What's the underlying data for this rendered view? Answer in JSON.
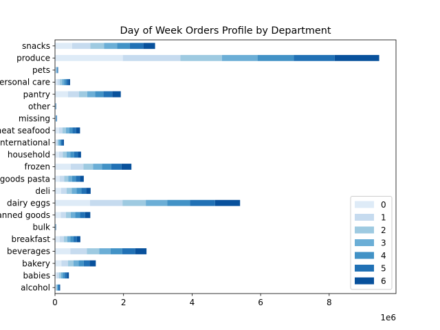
{
  "chart_data": {
    "type": "bar",
    "orientation": "horizontal",
    "stacked": true,
    "title": "Day of Week Orders Profile by Department",
    "xlabel": "",
    "ylabel": "",
    "x_scale_label": "1e6",
    "xlim": [
      0,
      9950000
    ],
    "x_ticks": [
      0,
      2000000,
      4000000,
      6000000,
      8000000
    ],
    "x_tick_labels": [
      "0",
      "2",
      "4",
      "6",
      "8"
    ],
    "grid": false,
    "legend_position": "lower right",
    "categories": [
      "alcohol",
      "babies",
      "bakery",
      "beverages",
      "breakfast",
      "bulk",
      "canned goods",
      "dairy eggs",
      "deli",
      "dry goods pasta",
      "frozen",
      "household",
      "international",
      "meat seafood",
      "missing",
      "other",
      "pantry",
      "personal care",
      "pets",
      "produce",
      "snacks"
    ],
    "series": [
      {
        "name": "0",
        "color": "#deebf7",
        "values": [
          20000,
          60000,
          190000,
          450000,
          140000,
          6000,
          170000,
          1020000,
          180000,
          140000,
          460000,
          120000,
          40000,
          120000,
          10000,
          6000,
          380000,
          70000,
          15000,
          1980000,
          500000
        ]
      },
      {
        "name": "1",
        "color": "#c6dbef",
        "values": [
          20000,
          60000,
          190000,
          480000,
          120000,
          5000,
          150000,
          950000,
          160000,
          130000,
          370000,
          110000,
          35000,
          100000,
          10000,
          6000,
          320000,
          70000,
          15000,
          1680000,
          530000
        ]
      },
      {
        "name": "2",
        "color": "#9ecae1",
        "values": [
          20000,
          55000,
          160000,
          360000,
          100000,
          4000,
          140000,
          680000,
          150000,
          120000,
          280000,
          110000,
          35000,
          100000,
          8000,
          5000,
          240000,
          65000,
          12000,
          1210000,
          400000
        ]
      },
      {
        "name": "3",
        "color": "#6baed6",
        "values": [
          20000,
          55000,
          150000,
          330000,
          90000,
          4000,
          130000,
          630000,
          140000,
          110000,
          260000,
          110000,
          35000,
          95000,
          8000,
          5000,
          230000,
          60000,
          12000,
          1040000,
          380000
        ]
      },
      {
        "name": "4",
        "color": "#4292c6",
        "values": [
          20000,
          55000,
          150000,
          340000,
          90000,
          4000,
          140000,
          660000,
          140000,
          110000,
          270000,
          110000,
          35000,
          95000,
          8000,
          5000,
          240000,
          60000,
          12000,
          1060000,
          370000
        ]
      },
      {
        "name": "5",
        "color": "#2171b5",
        "values": [
          25000,
          60000,
          170000,
          380000,
          100000,
          5000,
          150000,
          730000,
          140000,
          120000,
          300000,
          110000,
          40000,
          110000,
          8000,
          5000,
          260000,
          60000,
          12000,
          1190000,
          400000
        ]
      },
      {
        "name": "6",
        "color": "#08519c",
        "values": [
          25000,
          60000,
          180000,
          330000,
          100000,
          5000,
          150000,
          730000,
          130000,
          110000,
          290000,
          90000,
          40000,
          110000,
          8000,
          5000,
          250000,
          55000,
          12000,
          1300000,
          340000
        ]
      }
    ]
  }
}
